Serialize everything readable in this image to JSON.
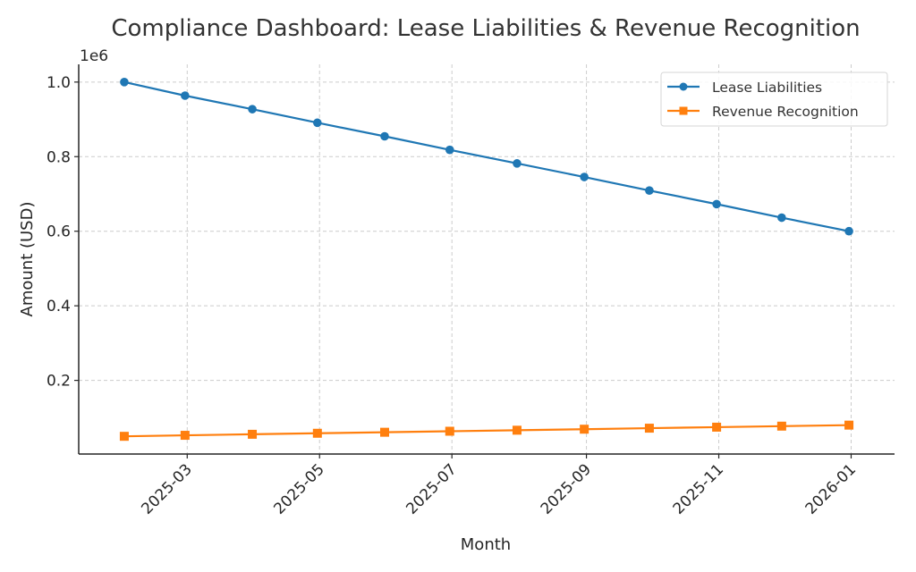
{
  "chart_data": {
    "type": "line",
    "title": "Compliance Dashboard: Lease Liabilities & Revenue Recognition",
    "xlabel": "Month",
    "ylabel": "Amount (USD)",
    "y_offset_label": "1e6",
    "y_scale": 1000000,
    "x": [
      "2025-01-31",
      "2025-02-28",
      "2025-03-31",
      "2025-04-30",
      "2025-05-31",
      "2025-06-30",
      "2025-07-31",
      "2025-08-31",
      "2025-09-30",
      "2025-10-31",
      "2025-11-30",
      "2025-12-31"
    ],
    "series": [
      {
        "name": "Lease Liabilities",
        "color": "#1f77b4",
        "marker": "circle",
        "values": [
          1000000,
          963636,
          927273,
          890909,
          854545,
          818182,
          781818,
          745455,
          709091,
          672727,
          636364,
          600000
        ]
      },
      {
        "name": "Revenue Recognition",
        "color": "#ff7f0e",
        "marker": "square",
        "values": [
          50000,
          52727,
          55455,
          58182,
          60909,
          63636,
          66364,
          69091,
          71818,
          74545,
          77273,
          80000
        ]
      }
    ],
    "ylim": [
      2500,
      1047500
    ],
    "xlim": [
      "2025-01-10",
      "2026-01-21"
    ],
    "yticks": [
      200000,
      400000,
      600000,
      800000,
      1000000
    ],
    "ytick_labels": [
      "0.2",
      "0.4",
      "0.6",
      "0.8",
      "1.0"
    ],
    "xticks": [
      "2025-03-01",
      "2025-05-01",
      "2025-07-01",
      "2025-09-01",
      "2025-11-01",
      "2026-01-01"
    ],
    "xtick_labels": [
      "2025-03",
      "2025-05",
      "2025-07",
      "2025-09",
      "2025-11",
      "2026-01"
    ],
    "grid": true,
    "grid_style": "dashed",
    "legend_position": "top-right"
  }
}
